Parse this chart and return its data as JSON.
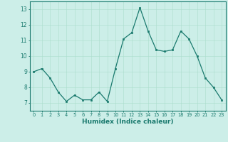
{
  "x": [
    0,
    1,
    2,
    3,
    4,
    5,
    6,
    7,
    8,
    9,
    10,
    11,
    12,
    13,
    14,
    15,
    16,
    17,
    18,
    19,
    20,
    21,
    22,
    23
  ],
  "y": [
    9.0,
    9.2,
    8.6,
    7.7,
    7.1,
    7.5,
    7.2,
    7.2,
    7.7,
    7.1,
    9.2,
    11.1,
    11.5,
    13.1,
    11.6,
    10.4,
    10.3,
    10.4,
    11.6,
    11.1,
    10.0,
    8.6,
    8.0,
    7.2
  ],
  "xlabel": "Humidex (Indice chaleur)",
  "ylim": [
    6.5,
    13.5
  ],
  "xlim": [
    -0.5,
    23.5
  ],
  "yticks": [
    7,
    8,
    9,
    10,
    11,
    12,
    13
  ],
  "xticks": [
    0,
    1,
    2,
    3,
    4,
    5,
    6,
    7,
    8,
    9,
    10,
    11,
    12,
    13,
    14,
    15,
    16,
    17,
    18,
    19,
    20,
    21,
    22,
    23
  ],
  "line_color": "#1a7a6e",
  "marker_color": "#1a7a6e",
  "bg_color": "#cceee8",
  "grid_color": "#aaddcc",
  "axes_color": "#1a7a6e",
  "tick_label_color": "#1a7a6e",
  "xlabel_color": "#1a7a6e"
}
